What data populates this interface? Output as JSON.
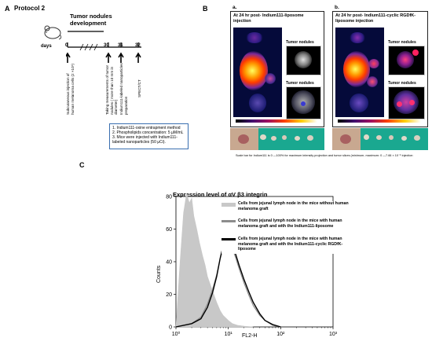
{
  "panelA": {
    "letter": "A",
    "protocol": "Protocol 2",
    "header": "Tumor nodules development",
    "days_label": "days",
    "ticks": [
      "0",
      "30",
      "31",
      "32"
    ],
    "events": [
      "Subcutaneous injection of human melanoma cells (2 ×10⁶)",
      "Taking measurements of tumor nodules ( more than 10 mm in diameter)",
      "Indium111-labeled nanoparticles preparation",
      "SPECT/CT"
    ],
    "notes": [
      "1.   Indium111-oxine entrapment method",
      "2.   Phospholipids concentration: 5 µM/mL",
      "3.   Mice were injected with Indium111-labeled nanoparticles (50 µCi)."
    ]
  },
  "panelB": {
    "letter": "B",
    "sub_a": {
      "letter": "a.",
      "title": "At 24 hr post- Indium111-liposome injection",
      "inset_label_1": "Tumor nodules",
      "inset_label_2": "Tumor nodules"
    },
    "sub_b": {
      "letter": "b.",
      "title": "At 24 hr post- Indium111-cyclic RGDfK- liposome injection",
      "inset_label_1": "Tumor nodules",
      "inset_label_2": "Tumor nodules"
    },
    "caption": "Scale bar for Indium111 is 0 —100% for maximum intensity projection and tumor slices (minimum- maximum: 0 —7.66 × 10⁻⁵ injection"
  },
  "panelC": {
    "letter": "C",
    "chart_data": {
      "type": "line",
      "title": "Expression level of αV β3 integrin",
      "xlabel": "FL2-H",
      "ylabel": "Counts",
      "x_scale": "log",
      "xlim": [
        1,
        1000
      ],
      "ylim": [
        0,
        80
      ],
      "x_ticks": [
        "10⁰",
        "10¹",
        "10²",
        "10³"
      ],
      "y_ticks": [
        "0",
        "20",
        "40",
        "60",
        "80"
      ],
      "series": [
        {
          "name": "Cells from jejunal lymph node in the mice without human melanoma graft",
          "color": "#c8c8c8",
          "x": [
            1,
            1.2,
            1.4,
            1.6,
            1.8,
            2.0,
            2.2,
            2.5,
            2.8,
            3.2,
            3.6,
            4,
            5,
            6,
            7,
            8,
            10,
            12,
            15,
            20,
            30
          ],
          "y": [
            0,
            40,
            70,
            82,
            76,
            79,
            68,
            60,
            52,
            44,
            38,
            31,
            22,
            15,
            10,
            7,
            4,
            2,
            1,
            0.5,
            0
          ]
        },
        {
          "name": "Cells from jejunal lymph node in the mice with human melanoma graft and with the Indium111-liposome",
          "color": "#8c8c8c",
          "x": [
            1,
            2,
            3,
            4,
            5,
            6,
            7,
            8,
            9,
            10,
            12,
            14,
            16,
            20,
            25,
            30,
            40,
            50,
            70,
            100
          ],
          "y": [
            0,
            2,
            6,
            14,
            23,
            32,
            42,
            49,
            52,
            53,
            48,
            42,
            36,
            27,
            19,
            13,
            7,
            4,
            1,
            0
          ]
        },
        {
          "name": "Cells from jejunal lymph node in the mice with human melanoma graft and with the Indium111-cyclic RGDfK-liposome",
          "color": "#000000",
          "x": [
            1,
            2,
            3,
            4,
            5,
            6,
            7,
            8,
            9,
            10,
            12,
            14,
            16,
            20,
            25,
            30,
            40,
            50,
            70,
            100
          ],
          "y": [
            0,
            2,
            5,
            12,
            21,
            31,
            42,
            50,
            55,
            56,
            51,
            44,
            38,
            29,
            21,
            15,
            8,
            4,
            1.5,
            0
          ]
        }
      ],
      "legend_position": "top-right"
    }
  }
}
